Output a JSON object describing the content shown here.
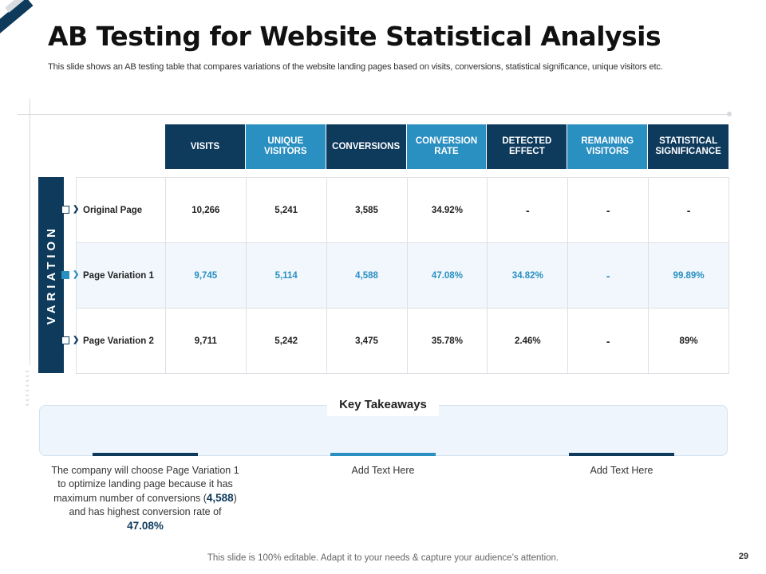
{
  "title": "AB Testing for Website Statistical Analysis",
  "subtitle": "This slide shows an AB testing table that compares variations of the website landing pages based on visits, conversions, statistical significance, unique visitors etc.",
  "colors": {
    "dark": "#0e3a5c",
    "accent": "#2a8fc1"
  },
  "table": {
    "headers": [
      "VISITS",
      "UNIQUE VISITORS",
      "CONVERSIONS",
      "CONVERSION RATE",
      "DETECTED EFFECT",
      "REMAINING VISITORS",
      "STATISTICAL SIGNIFICANCE"
    ],
    "side_label": "VARIATION",
    "rows": [
      {
        "name": "Original Page",
        "visits": "10,266",
        "unique_visitors": "5,241",
        "conversions": "3,585",
        "conversion_rate": "34.92%",
        "detected_effect": "-",
        "remaining_visitors": "-",
        "significance": "-"
      },
      {
        "name": "Page Variation 1",
        "visits": "9,745",
        "unique_visitors": "5,114",
        "conversions": "4,588",
        "conversion_rate": "47.08%",
        "detected_effect": "34.82%",
        "remaining_visitors": "-",
        "significance": "99.89%"
      },
      {
        "name": "Page Variation 2",
        "visits": "9,711",
        "unique_visitors": "5,242",
        "conversions": "3,475",
        "conversion_rate": "35.78%",
        "detected_effect": "2.46%",
        "remaining_visitors": "-",
        "significance": "89%"
      }
    ]
  },
  "takeaways": {
    "title": "Key Takeaways",
    "items": [
      {
        "text_a": "The company will choose Page Variation 1 to optimize landing page because it has maximum number of conversions (",
        "highlight_a": "4,588",
        "text_b": ") and has highest conversion rate of ",
        "highlight_b": "47.08%"
      },
      {
        "text": "Add Text Here"
      },
      {
        "text": "Add Text Here"
      }
    ]
  },
  "footer": "This slide is 100% editable. Adapt it to your needs & capture your audience’s attention.",
  "page_number": "29"
}
